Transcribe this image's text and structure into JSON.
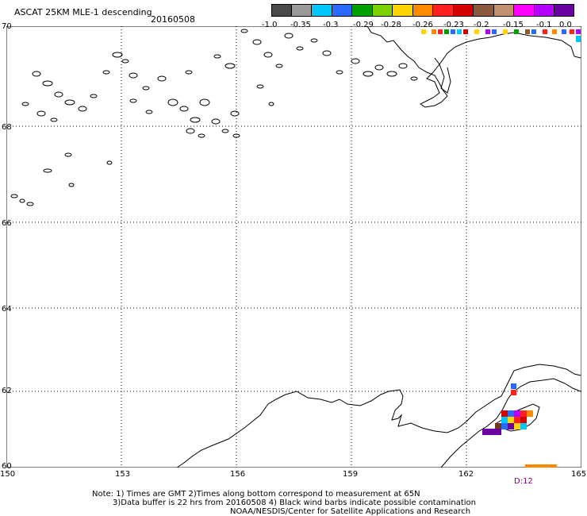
{
  "title": "ASCAT 25KM MLE-1 descending",
  "date": "20160508",
  "colorbar": {
    "colors": [
      "#4a4a4a",
      "#9a9a9a",
      "#00c8ff",
      "#2a6aff",
      "#00a000",
      "#7ad000",
      "#ffd400",
      "#ff8a00",
      "#ff2020",
      "#d40000",
      "#8b5a3c",
      "#c09070",
      "#ff00ff",
      "#b400ff",
      "#6a00a0"
    ],
    "labels": [
      "-1.0",
      "-0.35",
      "-0.3",
      "-0.29",
      "-0.28",
      "-0.26",
      "-0.23",
      "-0.2",
      "-0.15",
      "-0.1",
      "0.0"
    ]
  },
  "axes": {
    "latitudes": [
      "70",
      "68",
      "66",
      "64",
      "62",
      "60"
    ],
    "longitudes": [
      "150",
      "153",
      "156",
      "159",
      "162",
      "165"
    ]
  },
  "d_label": "D:12",
  "footer": {
    "line1": "Note: 1) Times are GMT 2)Times along bottom correspond to measurement at 65N",
    "line2": "3)Data buffer is 22 hrs from 20160508 4) Black wind barbs indicate possible contamination",
    "line3": "NOAA/NESDIS/Center for Satellite Applications and Research"
  }
}
